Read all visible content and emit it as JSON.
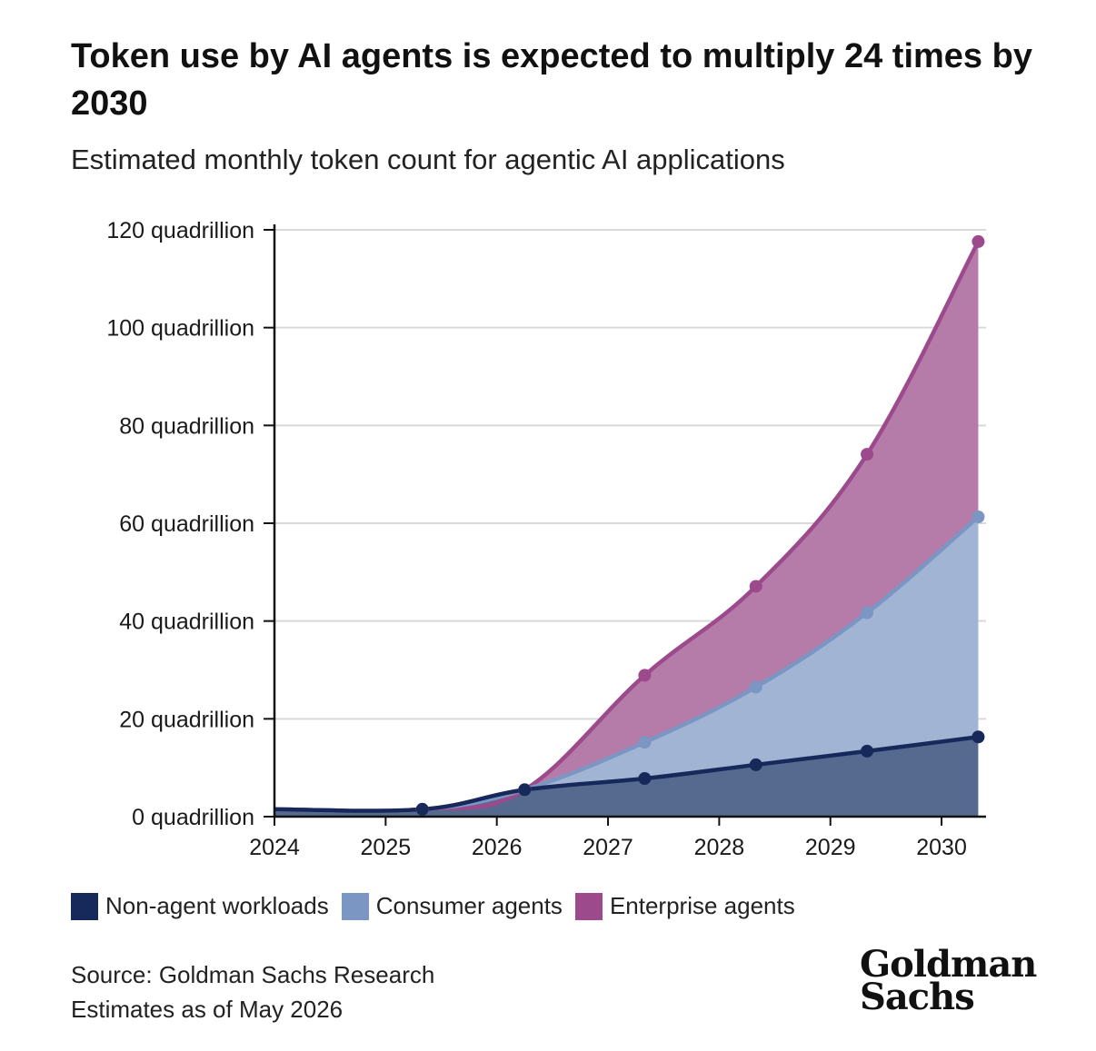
{
  "title": "Token use by AI agents is expected to multiply 24 times by 2030",
  "subtitle": "Estimated monthly token count for agentic AI applications",
  "source_line1": "Source: Goldman Sachs Research",
  "source_line2": "Estimates as of May 2026",
  "logo_line1": "Goldman",
  "logo_line2": "Sachs",
  "chart_data": {
    "type": "area",
    "stacked": true,
    "x_ticks": [
      "2024",
      "2025",
      "2026",
      "2027",
      "2028",
      "2029",
      "2030"
    ],
    "y_ticks": [
      "0 quadrillion",
      "20 quadrillion",
      "40 quadrillion",
      "60 quadrillion",
      "80 quadrillion",
      "100 quadrillion",
      "120 quadrillion"
    ],
    "ylim": [
      0,
      120
    ],
    "xlim": [
      2024,
      2030.4
    ],
    "grid": "horizontal",
    "legend_position": "bottom",
    "series": [
      {
        "name": "Non-agent workloads",
        "color": "#16295a",
        "fill": "#566a8f",
        "points": [
          [
            2024,
            1.5
          ],
          [
            2025.33,
            1.5
          ],
          [
            2026.25,
            5.5
          ],
          [
            2027.33,
            7.8
          ],
          [
            2028.33,
            10.6
          ],
          [
            2029.33,
            13.4
          ],
          [
            2030.33,
            16.3
          ]
        ]
      },
      {
        "name": "Consumer agents",
        "color": "#7b96c3",
        "fill": "#a1b4d3",
        "points": [
          [
            2024,
            1.5
          ],
          [
            2025.33,
            1.5
          ],
          [
            2026.25,
            5.5
          ],
          [
            2027.33,
            15.2
          ],
          [
            2028.33,
            26.5
          ],
          [
            2029.33,
            41.7
          ],
          [
            2030.33,
            61.3
          ]
        ]
      },
      {
        "name": "Enterprise agents",
        "color": "#9c4a8c",
        "fill": "#b67ca9",
        "points": [
          [
            2024,
            1.5
          ],
          [
            2025.33,
            1.5
          ],
          [
            2026.25,
            5.5
          ],
          [
            2027.33,
            28.9
          ],
          [
            2028.33,
            47.1
          ],
          [
            2029.33,
            74.1
          ],
          [
            2030.33,
            117.6
          ]
        ]
      }
    ]
  }
}
